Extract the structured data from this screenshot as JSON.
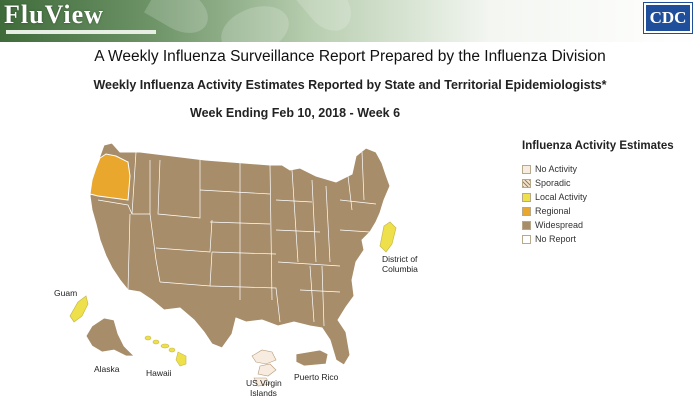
{
  "header": {
    "logo_text": "FluView",
    "cdc_logo_text": "CDC"
  },
  "title": "A Weekly Influenza Surveillance Report Prepared by the Influenza Division",
  "subtitle": "Weekly Influenza Activity Estimates Reported by State and Territorial Epidemiologists*",
  "week_label": "Week Ending Feb 10, 2018 - Week 6",
  "legend": {
    "title": "Influenza Activity Estimates",
    "items": [
      {
        "label": "No Activity",
        "color": "#f7ecdf",
        "pattern": "none"
      },
      {
        "label": "Sporadic",
        "color": "#f3e3cd",
        "pattern": "cross"
      },
      {
        "label": "Local Activity",
        "color": "#ede04a",
        "pattern": "none"
      },
      {
        "label": "Regional",
        "color": "#e9a72e",
        "pattern": "none"
      },
      {
        "label": "Widespread",
        "color": "#a78d6a",
        "pattern": "none"
      },
      {
        "label": "No Report",
        "color": "#ffffff",
        "pattern": "none"
      }
    ]
  },
  "map": {
    "default_level": "Widespread",
    "highlighted_states": [
      {
        "name": "Oregon",
        "level": "Regional"
      },
      {
        "name": "District of Columbia",
        "level": "Local Activity"
      },
      {
        "name": "Hawaii",
        "level": "Local Activity"
      },
      {
        "name": "Guam",
        "level": "Local Activity"
      },
      {
        "name": "US Virgin Islands",
        "level": "No Activity"
      }
    ],
    "labels": {
      "guam": "Guam",
      "alaska": "Alaska",
      "hawaii": "Hawaii",
      "dc_line1": "District of",
      "dc_line2": "Columbia",
      "usvi_line1": "US Virgin",
      "usvi_line2": "Islands",
      "puerto_rico": "Puerto Rico"
    }
  }
}
